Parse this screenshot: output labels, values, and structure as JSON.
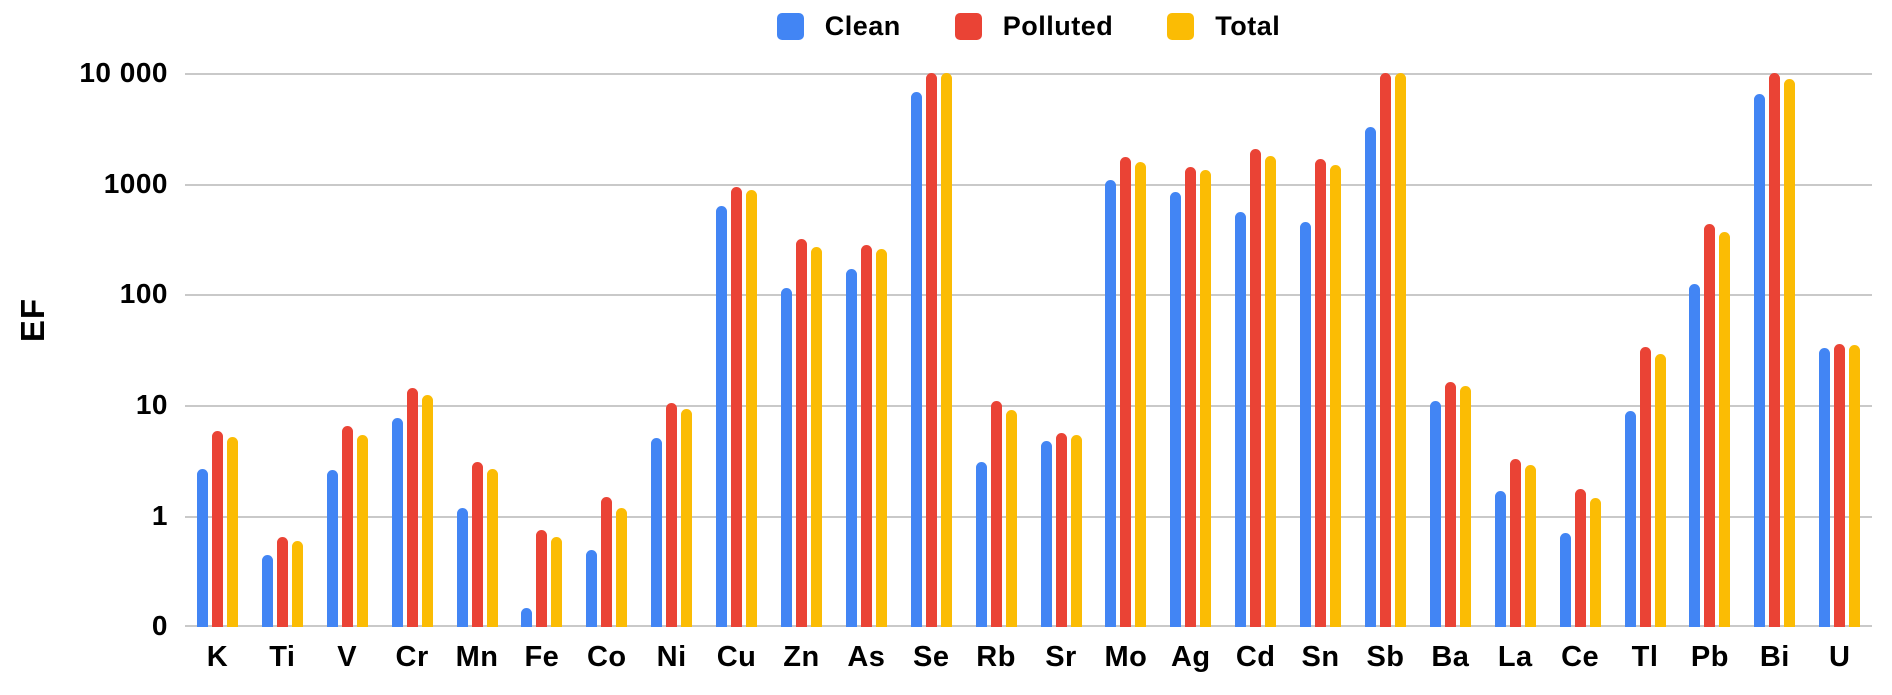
{
  "chart_data": {
    "type": "bar",
    "title": "",
    "xlabel": "",
    "ylabel": "EF",
    "scale": "log",
    "grid": true,
    "legend_position": "top-center",
    "background": "#ffffff",
    "grid_color": "#c9c9c9",
    "text_color": "#000000",
    "y_axis_ticks": [
      "10 000",
      "1000",
      "100",
      "10",
      "1",
      "0"
    ],
    "ylim": [
      0,
      10000
    ],
    "categories": [
      "K",
      "Ti",
      "V",
      "Cr",
      "Mn",
      "Fe",
      "Co",
      "Ni",
      "Cu",
      "Zn",
      "As",
      "Se",
      "Rb",
      "Sr",
      "Mo",
      "Ag",
      "Cd",
      "Sn",
      "Sb",
      "Ba",
      "La",
      "Ce",
      "Tl",
      "Pb",
      "Bi",
      "U"
    ],
    "series": [
      {
        "name": "Clean",
        "color": "#4285F4",
        "values": [
          2.7,
          0.45,
          2.6,
          7.8,
          1.2,
          0.15,
          0.5,
          5.1,
          630,
          115,
          170,
          6800,
          3.1,
          4.8,
          1100,
          850,
          560,
          460,
          3300,
          11,
          1.7,
          0.7,
          9,
          126,
          6600,
          33
        ]
      },
      {
        "name": "Polluted",
        "color": "#EA4335",
        "values": [
          5.9,
          0.65,
          6.5,
          14.5,
          3.1,
          0.75,
          1.5,
          10.5,
          950,
          320,
          280,
          12800,
          11,
          5.7,
          1750,
          1420,
          2100,
          1700,
          14000,
          16.5,
          3.3,
          1.75,
          34,
          440,
          10300,
          36
        ]
      },
      {
        "name": "Total",
        "color": "#FBBC04",
        "values": [
          5.2,
          0.6,
          5.4,
          12.6,
          2.7,
          0.65,
          1.2,
          9.3,
          880,
          270,
          260,
          11500,
          9.2,
          5.4,
          1600,
          1340,
          1800,
          1480,
          12000,
          15,
          2.9,
          1.45,
          29,
          370,
          9000,
          35
        ]
      }
    ]
  }
}
